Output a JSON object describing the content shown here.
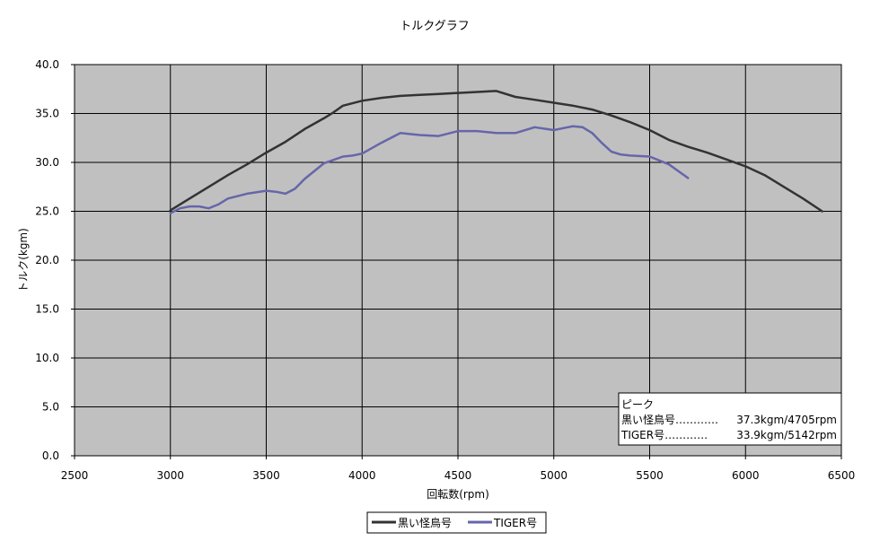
{
  "chart_data": {
    "type": "line",
    "title": "トルクグラフ",
    "xlabel": "回転数(rpm)",
    "ylabel": "トルク(kgm)",
    "xlim": [
      2500,
      6500
    ],
    "ylim": [
      0,
      40
    ],
    "xticks": [
      2500,
      3000,
      3500,
      4000,
      4500,
      5000,
      5500,
      6000,
      6500
    ],
    "yticks": [
      0,
      5,
      10,
      15,
      20,
      25,
      30,
      35,
      40
    ],
    "xtick_labels": [
      "2500",
      "3000",
      "3500",
      "4000",
      "4500",
      "5000",
      "5500",
      "6000",
      "6500"
    ],
    "ytick_labels": [
      "0.0",
      "5.0",
      "10.0",
      "15.0",
      "20.0",
      "25.0",
      "30.0",
      "35.0",
      "40.0"
    ],
    "grid": true,
    "plot_background": "#c0c0c0",
    "legend_position": "bottom",
    "series": [
      {
        "name": "黒い怪鳥号",
        "color": "#333333",
        "x": [
          3000,
          3100,
          3200,
          3300,
          3400,
          3500,
          3600,
          3700,
          3800,
          3850,
          3900,
          4000,
          4100,
          4200,
          4300,
          4400,
          4500,
          4600,
          4700,
          4800,
          4900,
          5000,
          5100,
          5200,
          5300,
          5400,
          5500,
          5600,
          5700,
          5800,
          5900,
          6000,
          6100,
          6200,
          6300,
          6400
        ],
        "y": [
          25.1,
          26.3,
          27.5,
          28.7,
          29.8,
          31.0,
          32.1,
          33.4,
          34.5,
          35.1,
          35.8,
          36.3,
          36.6,
          36.8,
          36.9,
          37.0,
          37.1,
          37.2,
          37.3,
          36.7,
          36.4,
          36.1,
          35.8,
          35.4,
          34.8,
          34.1,
          33.3,
          32.3,
          31.6,
          31.0,
          30.3,
          29.6,
          28.7,
          27.5,
          26.3,
          25.0
        ]
      },
      {
        "name": "TIGER号",
        "color": "#6666aa",
        "x": [
          3000,
          3050,
          3100,
          3150,
          3200,
          3250,
          3300,
          3400,
          3500,
          3550,
          3600,
          3650,
          3700,
          3800,
          3900,
          3950,
          4000,
          4100,
          4200,
          4300,
          4400,
          4500,
          4600,
          4700,
          4800,
          4900,
          5000,
          5050,
          5100,
          5150,
          5200,
          5250,
          5300,
          5350,
          5400,
          5500,
          5600,
          5700
        ],
        "y": [
          24.8,
          25.3,
          25.5,
          25.5,
          25.3,
          25.7,
          26.3,
          26.8,
          27.1,
          27.0,
          26.8,
          27.3,
          28.3,
          29.9,
          30.6,
          30.7,
          30.9,
          32.0,
          33.0,
          32.8,
          32.7,
          33.2,
          33.2,
          33.0,
          33.0,
          33.6,
          33.3,
          33.5,
          33.7,
          33.6,
          33.0,
          32.0,
          31.1,
          30.8,
          30.7,
          30.6,
          29.8,
          28.4
        ]
      }
    ],
    "annotation": {
      "heading": "ピーク",
      "lines": [
        {
          "label": "黒い怪鳥号…………",
          "value": "37.3kgm/4705rpm"
        },
        {
          "label": "TIGER号…………",
          "value": "33.9kgm/5142rpm"
        }
      ],
      "placement": "bottom-right"
    }
  }
}
